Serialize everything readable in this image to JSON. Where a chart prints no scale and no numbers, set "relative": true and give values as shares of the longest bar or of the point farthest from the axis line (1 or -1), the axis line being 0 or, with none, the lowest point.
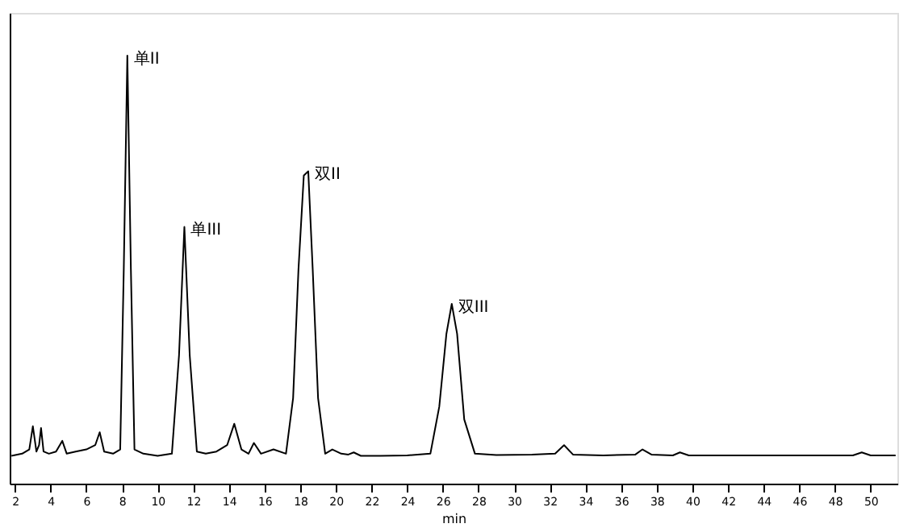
{
  "chart_data": {
    "type": "line",
    "relative": true,
    "xlabel": "min",
    "xlim": [
      1.7,
      51.5
    ],
    "xticks": [
      2,
      4,
      6,
      8,
      10,
      12,
      14,
      16,
      18,
      20,
      22,
      24,
      26,
      28,
      30,
      32,
      34,
      36,
      38,
      40,
      42,
      44,
      46,
      48,
      50
    ],
    "grid": false,
    "series": [
      {
        "color": "#000000",
        "x": [
          1.8,
          2.4,
          2.8,
          3.0,
          3.2,
          3.35,
          3.46,
          3.6,
          3.9,
          4.3,
          4.65,
          4.9,
          5.4,
          6.0,
          6.5,
          6.75,
          7.0,
          7.5,
          7.9,
          8.1,
          8.3,
          8.5,
          8.7,
          9.2,
          10.0,
          10.8,
          11.2,
          11.5,
          11.8,
          12.2,
          12.7,
          13.3,
          13.9,
          14.3,
          14.7,
          15.1,
          15.4,
          15.8,
          16.5,
          17.2,
          17.6,
          17.9,
          18.2,
          18.45,
          18.7,
          19.0,
          19.4,
          19.8,
          20.3,
          20.7,
          21.0,
          21.4,
          22.5,
          24.0,
          25.3,
          25.8,
          26.2,
          26.5,
          26.8,
          27.2,
          27.8,
          29.0,
          31.0,
          32.3,
          32.8,
          33.3,
          35.0,
          36.8,
          37.2,
          37.7,
          38.9,
          39.3,
          39.8,
          43.0,
          46.0,
          49.0,
          49.5,
          50.0,
          51.4
        ],
        "values": [
          0.065,
          0.07,
          0.08,
          0.134,
          0.075,
          0.09,
          0.13,
          0.075,
          0.07,
          0.075,
          0.1,
          0.07,
          0.075,
          0.08,
          0.09,
          0.12,
          0.075,
          0.07,
          0.08,
          0.5,
          1.0,
          0.5,
          0.08,
          0.07,
          0.065,
          0.07,
          0.3,
          0.6,
          0.3,
          0.075,
          0.07,
          0.075,
          0.09,
          0.14,
          0.08,
          0.07,
          0.095,
          0.07,
          0.08,
          0.07,
          0.2,
          0.5,
          0.72,
          0.73,
          0.5,
          0.2,
          0.07,
          0.08,
          0.07,
          0.068,
          0.073,
          0.065,
          0.065,
          0.066,
          0.07,
          0.18,
          0.35,
          0.42,
          0.35,
          0.15,
          0.07,
          0.067,
          0.068,
          0.07,
          0.09,
          0.068,
          0.066,
          0.068,
          0.08,
          0.068,
          0.066,
          0.073,
          0.066,
          0.066,
          0.066,
          0.066,
          0.073,
          0.066,
          0.066
        ]
      }
    ],
    "annotations": [
      {
        "text": "单II",
        "x": 8.3,
        "y": 1.0
      },
      {
        "text": "单III",
        "x": 11.5,
        "y": 0.6
      },
      {
        "text": "双II",
        "x": 18.45,
        "y": 0.73
      },
      {
        "text": "双III",
        "x": 26.5,
        "y": 0.42
      }
    ]
  }
}
